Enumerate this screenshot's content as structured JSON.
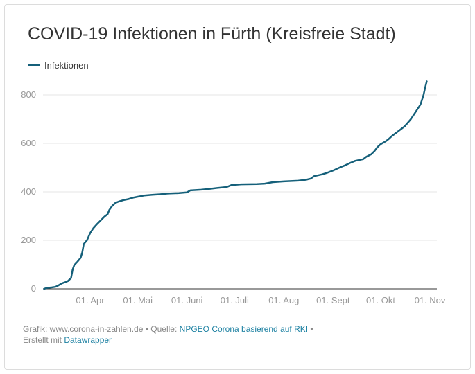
{
  "title": "COVID-19 Infektionen in Fürth (Kreisfreie Stadt)",
  "legend": {
    "label": "Infektionen",
    "color": "#15607a"
  },
  "footer": {
    "grafik_label": "Grafik: www.corona-in-zahlen.de",
    "sep1": " • Quelle: ",
    "source_link": "NPGEO Corona basierend auf RKI",
    "sep2": " •",
    "created_label": "Erstellt mit ",
    "tool_link": "Datawrapper"
  },
  "chart_data": {
    "type": "line",
    "title": "COVID-19 Infektionen in Fürth (Kreisfreie Stadt)",
    "xlabel": "",
    "ylabel": "",
    "ylim": [
      0,
      800
    ],
    "yticks": [
      0,
      200,
      400,
      600,
      800
    ],
    "grid": true,
    "legend_position": "top-left",
    "xticks": [
      {
        "label": "01. Apr",
        "date": "2020-04-01"
      },
      {
        "label": "01. Mai",
        "date": "2020-05-01"
      },
      {
        "label": "01. Juni",
        "date": "2020-06-01"
      },
      {
        "label": "01. Juli",
        "date": "2020-07-01"
      },
      {
        "label": "01. Aug",
        "date": "2020-08-01"
      },
      {
        "label": "01. Sept",
        "date": "2020-09-01"
      },
      {
        "label": "01. Okt",
        "date": "2020-10-01"
      },
      {
        "label": "01. Nov",
        "date": "2020-11-01"
      }
    ],
    "series": [
      {
        "name": "Infektionen",
        "color": "#15607a",
        "points": [
          [
            "2020-03-03",
            0
          ],
          [
            "2020-03-05",
            4
          ],
          [
            "2020-03-08",
            6
          ],
          [
            "2020-03-10",
            8
          ],
          [
            "2020-03-12",
            14
          ],
          [
            "2020-03-14",
            22
          ],
          [
            "2020-03-16",
            27
          ],
          [
            "2020-03-18",
            32
          ],
          [
            "2020-03-20",
            45
          ],
          [
            "2020-03-21",
            80
          ],
          [
            "2020-03-22",
            98
          ],
          [
            "2020-03-24",
            112
          ],
          [
            "2020-03-26",
            128
          ],
          [
            "2020-03-27",
            150
          ],
          [
            "2020-03-28",
            185
          ],
          [
            "2020-03-30",
            200
          ],
          [
            "2020-04-01",
            230
          ],
          [
            "2020-04-03",
            250
          ],
          [
            "2020-04-05",
            265
          ],
          [
            "2020-04-07",
            278
          ],
          [
            "2020-04-10",
            298
          ],
          [
            "2020-04-12",
            308
          ],
          [
            "2020-04-13",
            325
          ],
          [
            "2020-04-15",
            343
          ],
          [
            "2020-04-17",
            355
          ],
          [
            "2020-04-19",
            360
          ],
          [
            "2020-04-22",
            366
          ],
          [
            "2020-04-25",
            370
          ],
          [
            "2020-04-28",
            376
          ],
          [
            "2020-05-01",
            380
          ],
          [
            "2020-05-05",
            385
          ],
          [
            "2020-05-10",
            388
          ],
          [
            "2020-05-15",
            390
          ],
          [
            "2020-05-20",
            393
          ],
          [
            "2020-05-27",
            395
          ],
          [
            "2020-06-01",
            398
          ],
          [
            "2020-06-03",
            406
          ],
          [
            "2020-06-10",
            409
          ],
          [
            "2020-06-15",
            412
          ],
          [
            "2020-06-20",
            416
          ],
          [
            "2020-06-26",
            420
          ],
          [
            "2020-06-29",
            428
          ],
          [
            "2020-07-05",
            431
          ],
          [
            "2020-07-15",
            432
          ],
          [
            "2020-07-20",
            434
          ],
          [
            "2020-07-25",
            440
          ],
          [
            "2020-08-01",
            443
          ],
          [
            "2020-08-10",
            446
          ],
          [
            "2020-08-15",
            450
          ],
          [
            "2020-08-18",
            455
          ],
          [
            "2020-08-20",
            465
          ],
          [
            "2020-08-25",
            472
          ],
          [
            "2020-08-28",
            478
          ],
          [
            "2020-09-01",
            488
          ],
          [
            "2020-09-05",
            500
          ],
          [
            "2020-09-08",
            508
          ],
          [
            "2020-09-12",
            520
          ],
          [
            "2020-09-15",
            528
          ],
          [
            "2020-09-20",
            535
          ],
          [
            "2020-09-22",
            545
          ],
          [
            "2020-09-25",
            555
          ],
          [
            "2020-09-27",
            568
          ],
          [
            "2020-09-29",
            585
          ],
          [
            "2020-10-01",
            597
          ],
          [
            "2020-10-04",
            608
          ],
          [
            "2020-10-06",
            618
          ],
          [
            "2020-10-08",
            630
          ],
          [
            "2020-10-10",
            640
          ],
          [
            "2020-10-12",
            650
          ],
          [
            "2020-10-14",
            660
          ],
          [
            "2020-10-16",
            670
          ],
          [
            "2020-10-18",
            685
          ],
          [
            "2020-10-20",
            700
          ],
          [
            "2020-10-22",
            720
          ],
          [
            "2020-10-24",
            740
          ],
          [
            "2020-10-26",
            760
          ],
          [
            "2020-10-27",
            780
          ],
          [
            "2020-10-28",
            800
          ],
          [
            "2020-10-29",
            830
          ],
          [
            "2020-10-30",
            856
          ]
        ]
      }
    ]
  }
}
